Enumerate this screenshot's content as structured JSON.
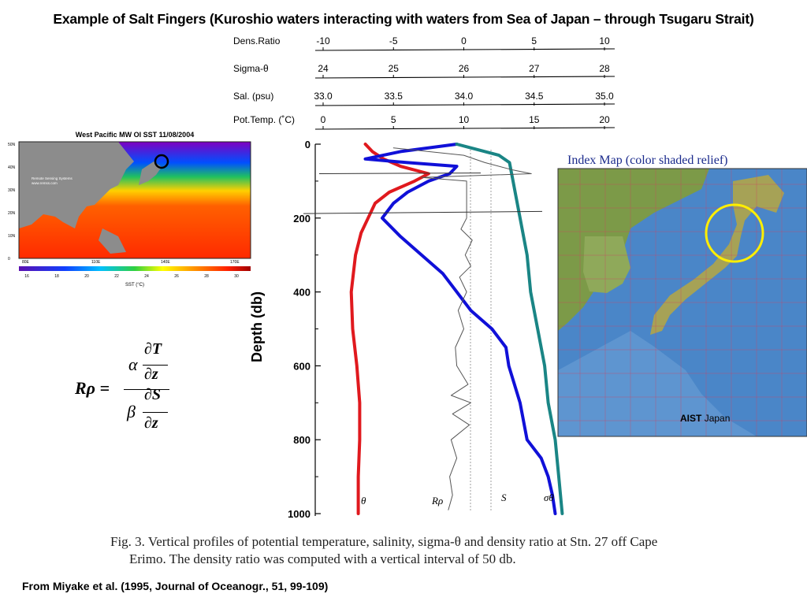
{
  "slide": {
    "title": "Example of Salt Fingers (Kuroshio waters interacting with waters from Sea of Japan – through Tsugaru Strait)",
    "citation": "From Miyake et al. (1995, Journal of Oceanogr., 51, 99-109)"
  },
  "caption": {
    "line1": "Fig. 3.  Vertical profiles of potential temperature, salinity, sigma-θ and density ratio at Stn. 27 off Cape",
    "line2": "Erimo. The density ratio was computed with a vertical interval of 50 db."
  },
  "formula": {
    "lhs": "Rρ =",
    "alpha": "α",
    "beta": "β",
    "dT": "∂T",
    "dS": "∂S",
    "dz": "∂z"
  },
  "sst_map": {
    "title": "West Pacific MW OI SST 11/08/2004",
    "credit_line1": "Remote Sensing Systems",
    "credit_line2": "www.remss.com",
    "lat_labels": [
      "50N",
      "40N",
      "30N",
      "20N",
      "10N",
      "0"
    ],
    "lon_labels": [
      "80E",
      "110E",
      "140E",
      "170E"
    ],
    "colorbar_ticks": [
      "16",
      "18",
      "20",
      "22",
      "24",
      "26",
      "28",
      "30"
    ],
    "colorbar_label": "SST (°C)"
  },
  "index_map": {
    "title": "Index Map (color shaded relief)",
    "credit": "AIST",
    "credit_sub": "Japan"
  },
  "chart_data": {
    "type": "line",
    "title": "",
    "ylabel": "Depth  (db)",
    "ylim": [
      0,
      1000
    ],
    "y_ticks": [
      "0",
      "200",
      "400",
      "600",
      "800",
      "1000"
    ],
    "top_axes": [
      {
        "label": "Dens.Ratio",
        "ticks": [
          "-10",
          "-5",
          "0",
          "5",
          "10"
        ],
        "range": [
          -10,
          10
        ]
      },
      {
        "label": "Sigma-θ",
        "ticks": [
          "24",
          "25",
          "26",
          "27",
          "28"
        ],
        "range": [
          24,
          28
        ]
      },
      {
        "label": "Sal.  (psu)",
        "ticks": [
          "33.0",
          "33.5",
          "34.0",
          "34.5",
          "35.0"
        ],
        "range": [
          33.0,
          35.0
        ]
      },
      {
        "label": "Pot.Temp.  (˚C)",
        "ticks": [
          "0",
          "5",
          "10",
          "15",
          "20"
        ],
        "range": [
          0,
          20
        ]
      }
    ],
    "series": [
      {
        "name": "θ",
        "axis": "Pot.Temp.  (˚C)",
        "color": "#e0191e",
        "depth": [
          0,
          20,
          40,
          60,
          80,
          100,
          130,
          160,
          200,
          240,
          300,
          400,
          500,
          600,
          700,
          800,
          900,
          1000
        ],
        "values": [
          3.0,
          3.5,
          4.3,
          5.5,
          7.5,
          6.5,
          4.7,
          3.7,
          3.2,
          2.7,
          2.3,
          2.0,
          2.1,
          2.4,
          2.6,
          2.6,
          2.5,
          2.5
        ]
      },
      {
        "name": "S",
        "axis": "Sal.  (psu)",
        "color": "#1010d8",
        "depth": [
          0,
          20,
          40,
          50,
          60,
          80,
          100,
          130,
          160,
          200,
          250,
          300,
          350,
          400,
          450,
          500,
          550,
          600,
          700,
          800,
          850,
          900,
          950,
          1000
        ],
        "values": [
          33.95,
          33.55,
          33.3,
          33.6,
          33.95,
          33.9,
          33.75,
          33.6,
          33.5,
          33.42,
          33.55,
          33.7,
          33.85,
          33.95,
          34.05,
          34.2,
          34.3,
          34.32,
          34.4,
          34.45,
          34.55,
          34.6,
          34.63,
          34.65
        ]
      },
      {
        "name": "σθ",
        "axis": "Sigma-θ",
        "color": "#1a8585",
        "depth": [
          0,
          10,
          30,
          50,
          100,
          200,
          300,
          400,
          500,
          600,
          700,
          800,
          900,
          1000
        ],
        "values": [
          25.9,
          26.1,
          26.5,
          26.65,
          26.7,
          26.8,
          26.9,
          26.95,
          27.05,
          27.15,
          27.2,
          27.3,
          27.35,
          27.4
        ]
      },
      {
        "name": "Rρ",
        "axis": "Dens.Ratio",
        "color": "#555555",
        "depth": [
          10,
          30,
          50,
          70,
          80,
          90,
          100,
          200,
          230,
          260,
          300,
          330,
          360,
          400,
          450,
          500,
          550,
          600,
          650,
          680,
          700,
          730,
          760,
          800,
          850,
          900,
          950,
          990
        ],
        "values": [
          -5.0,
          0.0,
          1.5,
          3.5,
          4.8,
          -3.0,
          0.2,
          0.2,
          -0.2,
          0.6,
          0.1,
          0.5,
          -0.3,
          0.2,
          -0.4,
          0.0,
          -0.6,
          -0.5,
          0.3,
          -0.9,
          0.5,
          -0.8,
          0.4,
          -0.9,
          -0.5,
          -1.0,
          -0.8,
          -1.1
        ]
      }
    ],
    "series_labels": [
      {
        "text": "θ",
        "color": "#000"
      },
      {
        "text": "Rρ",
        "color": "#000"
      },
      {
        "text": "S",
        "color": "#000"
      },
      {
        "text": "σθ",
        "color": "#000"
      }
    ]
  }
}
